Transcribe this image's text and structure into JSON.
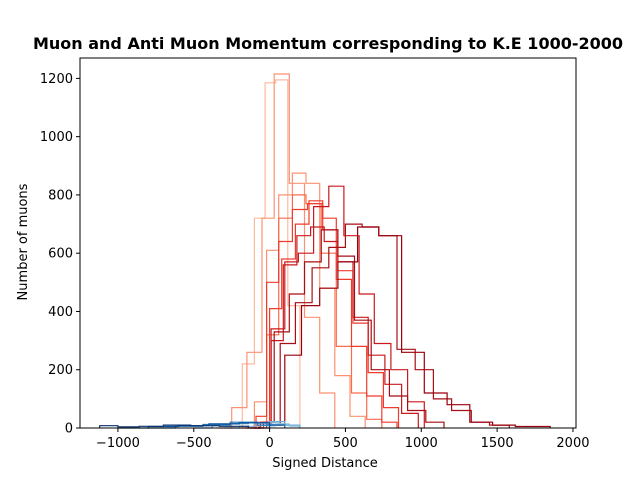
{
  "chart_data": {
    "type": "step-histogram",
    "title": "Muon and Anti Muon Momentum corresponding to K.E 1000-2000",
    "xlabel": "Signed Distance",
    "ylabel": "Number of muons",
    "xlim": [
      -1250,
      2020
    ],
    "ylim": [
      0,
      1270
    ],
    "xticks": [
      -1000,
      -500,
      0,
      500,
      1000,
      1500,
      2000
    ],
    "xtick_labels": [
      "−1000",
      "−500",
      "0",
      "500",
      "1000",
      "1500",
      "2000"
    ],
    "yticks": [
      0,
      200,
      400,
      600,
      800,
      1000,
      1200
    ],
    "ytick_labels": [
      "0",
      "200",
      "400",
      "600",
      "800",
      "1000",
      "1200"
    ],
    "grid": false,
    "series": [
      {
        "color": "#fcbba1",
        "edges": [
          -270,
          -180,
          -100,
          -30,
          40,
          120,
          200
        ],
        "values": [
          0,
          220,
          720,
          1185,
          1195,
          420,
          0
        ]
      },
      {
        "color": "#fc9272",
        "edges": [
          -350,
          -250,
          -150,
          -50,
          30,
          130,
          230,
          330,
          430
        ],
        "values": [
          0,
          70,
          260,
          720,
          1215,
          840,
          380,
          120,
          0
        ]
      },
      {
        "color": "#fc9272",
        "edges": [
          -200,
          -100,
          -20,
          60,
          150,
          240,
          330,
          430,
          530,
          630
        ],
        "values": [
          0,
          90,
          610,
          800,
          875,
          840,
          480,
          180,
          40,
          0
        ]
      },
      {
        "color": "#fb6a4a",
        "edges": [
          -180,
          -100,
          -20,
          60,
          150,
          240,
          340,
          440,
          540,
          640,
          740
        ],
        "values": [
          0,
          20,
          320,
          720,
          800,
          770,
          600,
          280,
          120,
          30,
          0
        ]
      },
      {
        "color": "#ef3b2c",
        "edges": [
          -150,
          -70,
          0,
          80,
          170,
          260,
          350,
          440,
          540,
          640,
          740,
          840
        ],
        "values": [
          0,
          10,
          410,
          580,
          700,
          780,
          720,
          510,
          280,
          110,
          20,
          0
        ]
      },
      {
        "color": "#ef3b2c",
        "edges": [
          -160,
          -90,
          -20,
          60,
          150,
          250,
          350,
          450,
          550,
          650,
          750,
          850
        ],
        "values": [
          0,
          40,
          500,
          640,
          750,
          770,
          680,
          540,
          360,
          190,
          70,
          0
        ]
      },
      {
        "color": "#cb181d",
        "edges": [
          -130,
          -60,
          10,
          90,
          180,
          270,
          360,
          450,
          550,
          650,
          760,
          870,
          980
        ],
        "values": [
          0,
          20,
          300,
          560,
          660,
          690,
          640,
          570,
          380,
          250,
          150,
          50,
          0
        ]
      },
      {
        "color": "#cb181d",
        "edges": [
          -130,
          -60,
          10,
          100,
          190,
          290,
          390,
          490,
          590,
          690,
          800,
          910,
          1020
        ],
        "values": [
          0,
          10,
          340,
          570,
          600,
          760,
          830,
          660,
          460,
          290,
          200,
          90,
          0
        ]
      },
      {
        "color": "#a50f15",
        "edges": [
          -110,
          -40,
          30,
          130,
          230,
          340,
          450,
          560,
          670,
          790,
          910,
          1030,
          1150
        ],
        "values": [
          0,
          20,
          330,
          460,
          570,
          680,
          590,
          370,
          200,
          110,
          60,
          20,
          0
        ]
      },
      {
        "color": "#a50f15",
        "edges": [
          -100,
          -20,
          70,
          170,
          280,
          390,
          500,
          610,
          720,
          840,
          960,
          1080,
          1200,
          1330,
          1450,
          1580
        ],
        "values": [
          0,
          10,
          290,
          430,
          550,
          620,
          700,
          690,
          660,
          270,
          200,
          100,
          60,
          20,
          10,
          0
        ]
      },
      {
        "color": "#99000d",
        "edges": [
          -100,
          0,
          100,
          210,
          330,
          450,
          580,
          720,
          870,
          1020,
          1170,
          1320,
          1470,
          1620,
          1850
        ],
        "values": [
          0,
          10,
          250,
          420,
          480,
          570,
          690,
          660,
          260,
          120,
          80,
          20,
          10,
          5,
          0
        ]
      },
      {
        "color": "#c6dbef",
        "edges": [
          -60,
          -10,
          40,
          90,
          140,
          190
        ],
        "values": [
          0,
          5,
          14,
          10,
          6,
          0
        ]
      },
      {
        "color": "#9ecae1",
        "edges": [
          -150,
          -80,
          -10,
          60,
          130,
          200
        ],
        "values": [
          0,
          8,
          18,
          14,
          6,
          0
        ]
      },
      {
        "color": "#6baed6",
        "edges": [
          -300,
          -200,
          -100,
          0,
          100,
          200
        ],
        "values": [
          0,
          6,
          16,
          22,
          10,
          0
        ]
      },
      {
        "color": "#4292c6",
        "edges": [
          -500,
          -380,
          -260,
          -140,
          -20,
          100
        ],
        "values": [
          0,
          8,
          15,
          18,
          12,
          0
        ]
      },
      {
        "color": "#2171b5",
        "edges": [
          -800,
          -620,
          -440,
          -260,
          -80,
          100
        ],
        "values": [
          0,
          6,
          12,
          20,
          10,
          0
        ]
      },
      {
        "color": "#08519c",
        "edges": [
          -1000,
          -800,
          -600,
          -400,
          -200,
          0
        ],
        "values": [
          0,
          5,
          8,
          14,
          18,
          0
        ]
      },
      {
        "color": "#08306b",
        "edges": [
          -1120,
          -1000,
          -860,
          -700,
          -520,
          -330,
          -140
        ],
        "values": [
          8,
          4,
          6,
          10,
          8,
          6,
          0
        ]
      }
    ]
  }
}
